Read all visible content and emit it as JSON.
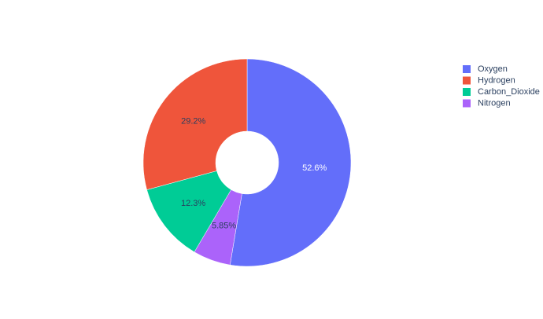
{
  "chart_data": {
    "type": "pie",
    "hole": true,
    "categories": [
      "Oxygen",
      "Hydrogen",
      "Carbon_Dioxide",
      "Nitrogen"
    ],
    "values": [
      52.6,
      29.2,
      12.3,
      5.85
    ],
    "value_labels": [
      "52.6%",
      "29.2%",
      "12.3%",
      "5.85%"
    ],
    "colors": [
      "#636efa",
      "#ef553b",
      "#00cc96",
      "#ab63fa"
    ],
    "legend": "top-right"
  }
}
